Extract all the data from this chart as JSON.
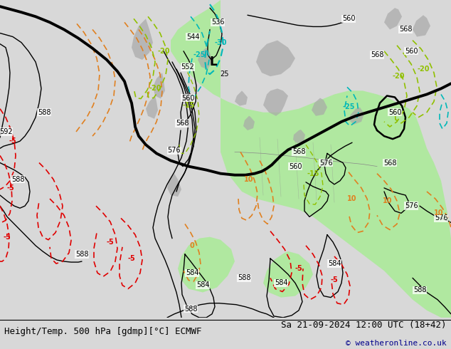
{
  "title_left": "Height/Temp. 500 hPa [gdmp][°C] ECMWF",
  "title_right": "Sa 21-09-2024 12:00 UTC (18+42)",
  "copyright": "© weatheronline.co.uk",
  "bg_color": "#d8d8d8",
  "map_bg_color": "#d0d0d0",
  "land_color": "#b8b8b8",
  "green_fill": "#b0e8a0",
  "fig_width": 6.34,
  "fig_height": 4.9,
  "dpi": 100,
  "contour_color_black": "#000000",
  "contour_color_orange": "#e08020",
  "contour_color_red": "#e00000",
  "contour_color_green": "#80c040",
  "contour_color_cyan": "#00b8b8",
  "contour_color_yellow_green": "#90c000",
  "title_fontsize": 9,
  "copyright_fontsize": 8,
  "copyright_color": "#00008b",
  "label_fontsize": 7
}
